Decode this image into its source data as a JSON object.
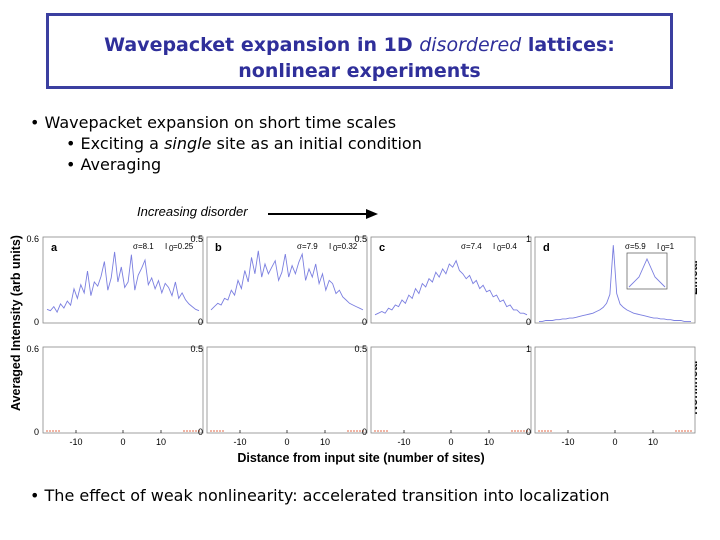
{
  "title": {
    "part1": "Wavepacket expansion in 1D ",
    "italic": "disordered",
    "part2": " lattices:",
    "line2": "nonlinear experiments"
  },
  "bullets": {
    "b1": "Wavepacket expansion on short time scales",
    "b2_pre": "Exciting a ",
    "b2_it": "single",
    "b2_post": " site as an initial condition",
    "b3": "Averaging",
    "b4": "The effect of weak nonlinearity: accelerated transition into localization"
  },
  "colors": {
    "title": "#2f2f9a",
    "border": "#3b3fa0",
    "linear": "#7b7fe0",
    "nonlinear": "#e06a4a"
  },
  "chart_data": {
    "type": "line",
    "arrow_label": "Increasing disorder",
    "ylabel": "Averaged Intensity (arb units)",
    "xlabel": "Distance from input site (number of sites)",
    "row_labels": [
      "Linear",
      "Nonlinear"
    ],
    "x_ticks": [
      "-10",
      "0",
      "10"
    ],
    "panels": [
      {
        "letter": "a",
        "sigma": "σ=8.1",
        "I0": "I",
        "I0sub": "0",
        "I0val": "=0.25",
        "ymax_label": "0.6",
        "ymin_label": "0",
        "ylim": [
          0,
          0.6
        ],
        "linear": [
          0.1,
          0.09,
          0.12,
          0.08,
          0.14,
          0.11,
          0.16,
          0.13,
          0.25,
          0.18,
          0.28,
          0.22,
          0.38,
          0.2,
          0.3,
          0.27,
          0.34,
          0.45,
          0.24,
          0.33,
          0.52,
          0.3,
          0.41,
          0.26,
          0.3,
          0.5,
          0.24,
          0.35,
          0.4,
          0.46,
          0.28,
          0.33,
          0.25,
          0.31,
          0.22,
          0.29,
          0.26,
          0.2,
          0.3,
          0.18,
          0.22,
          0.17,
          0.14,
          0.12,
          0.1,
          0.09
        ]
      },
      {
        "letter": "b",
        "sigma": "σ=7.9",
        "I0": "I",
        "I0sub": "0",
        "I0val": "=0.32",
        "ymax_label": "0.5",
        "ymin_label": "0",
        "ylim": [
          0,
          0.5
        ],
        "linear": [
          0.08,
          0.1,
          0.12,
          0.11,
          0.15,
          0.14,
          0.2,
          0.17,
          0.26,
          0.21,
          0.32,
          0.25,
          0.4,
          0.3,
          0.44,
          0.28,
          0.36,
          0.3,
          0.34,
          0.38,
          0.26,
          0.31,
          0.42,
          0.28,
          0.35,
          0.3,
          0.37,
          0.42,
          0.26,
          0.33,
          0.28,
          0.36,
          0.24,
          0.3,
          0.2,
          0.26,
          0.24,
          0.18,
          0.2,
          0.16,
          0.14,
          0.12,
          0.11,
          0.1,
          0.09,
          0.08
        ]
      },
      {
        "letter": "c",
        "sigma": "σ=7.4",
        "I0": "I",
        "I0sub": "0",
        "I0val": "=0.4",
        "ymax_label": "0.5",
        "ymin_label": "0",
        "ylim": [
          0,
          0.5
        ],
        "linear": [
          0.05,
          0.06,
          0.07,
          0.06,
          0.09,
          0.08,
          0.11,
          0.1,
          0.14,
          0.12,
          0.17,
          0.15,
          0.21,
          0.18,
          0.24,
          0.22,
          0.27,
          0.25,
          0.31,
          0.28,
          0.33,
          0.3,
          0.36,
          0.34,
          0.38,
          0.32,
          0.3,
          0.27,
          0.29,
          0.24,
          0.26,
          0.21,
          0.23,
          0.19,
          0.2,
          0.16,
          0.17,
          0.13,
          0.14,
          0.1,
          0.11,
          0.08,
          0.08,
          0.06,
          0.06,
          0.05
        ]
      },
      {
        "letter": "d",
        "sigma": "σ=5.9",
        "I0": "I",
        "I0sub": "0",
        "I0val": "=1",
        "ymax_label": "1",
        "ymin_label": "0",
        "ylim": [
          0,
          1
        ],
        "linear": [
          0.02,
          0.02,
          0.03,
          0.03,
          0.03,
          0.04,
          0.04,
          0.05,
          0.05,
          0.06,
          0.06,
          0.07,
          0.08,
          0.09,
          0.1,
          0.11,
          0.12,
          0.14,
          0.16,
          0.19,
          0.24,
          0.35,
          0.95,
          0.36,
          0.23,
          0.19,
          0.16,
          0.14,
          0.12,
          0.11,
          0.1,
          0.09,
          0.08,
          0.07,
          0.06,
          0.06,
          0.05,
          0.05,
          0.04,
          0.04,
          0.03,
          0.03,
          0.03,
          0.02,
          0.02,
          0.02
        ]
      }
    ],
    "nonlinear_ymax_labels": [
      "0.6",
      "0.5",
      "0.5",
      "1"
    ],
    "nonlinear_ymin_label": "0"
  }
}
